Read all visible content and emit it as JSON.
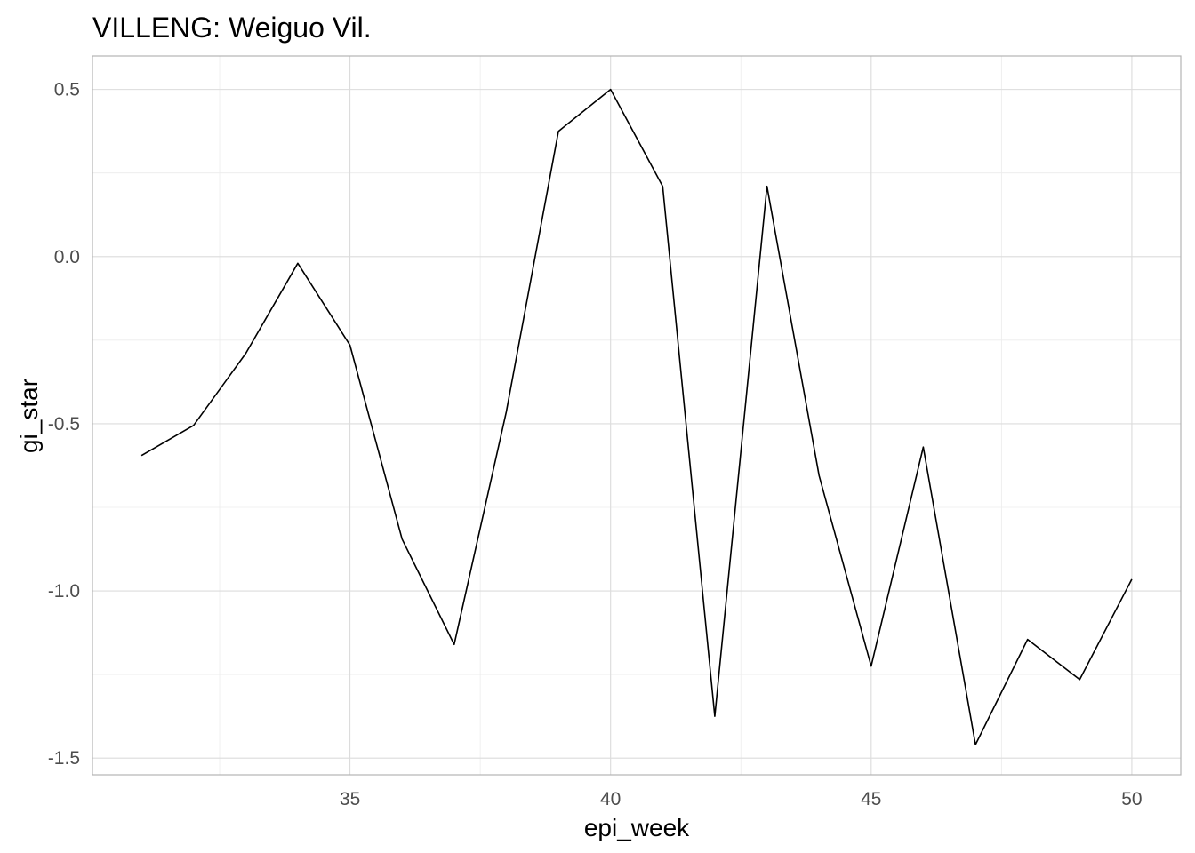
{
  "chart_data": {
    "type": "line",
    "title": "VILLENG: Weiguo Vil.",
    "xlabel": "epi_week",
    "ylabel": "gi_star",
    "xlim": [
      31,
      50
    ],
    "ylim": [
      -1.55,
      0.6
    ],
    "x_ticks": [
      35,
      40,
      45,
      50
    ],
    "x_tick_labels": [
      "35",
      "40",
      "45",
      "50"
    ],
    "y_ticks": [
      -1.5,
      -1.0,
      -0.5,
      0.0,
      0.5
    ],
    "y_tick_labels": [
      "-1.5",
      "-1.0",
      "-0.5",
      "0.0",
      "0.5"
    ],
    "grid": true,
    "series": [
      {
        "x": [
          31,
          32,
          33,
          34,
          35,
          36,
          37,
          38,
          39,
          40,
          41,
          42,
          43,
          44,
          45,
          46,
          47,
          48,
          49,
          50
        ],
        "y": [
          -0.595,
          -0.505,
          -0.29,
          -0.02,
          -0.265,
          -0.845,
          -1.16,
          -0.465,
          0.375,
          0.5,
          0.21,
          -1.375,
          0.21,
          -0.655,
          -1.225,
          -0.57,
          -1.46,
          -1.145,
          -1.265,
          -0.965
        ],
        "color": "#000000"
      }
    ]
  }
}
